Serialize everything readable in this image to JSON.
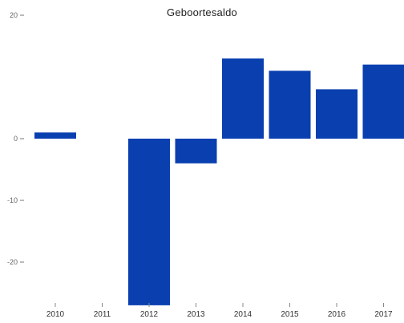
{
  "chart_data": {
    "type": "bar",
    "title": "Geboortesaldo",
    "categories": [
      "2010",
      "2011",
      "2012",
      "2013",
      "2014",
      "2015",
      "2016",
      "2017"
    ],
    "values": [
      1,
      0,
      -27,
      -4,
      13,
      11,
      8,
      12
    ],
    "yticks": [
      20,
      0,
      -10,
      -20
    ],
    "ylim": [
      -27,
      16
    ],
    "bar_color": "#0a3fb0",
    "grid": false,
    "legend": "none"
  }
}
